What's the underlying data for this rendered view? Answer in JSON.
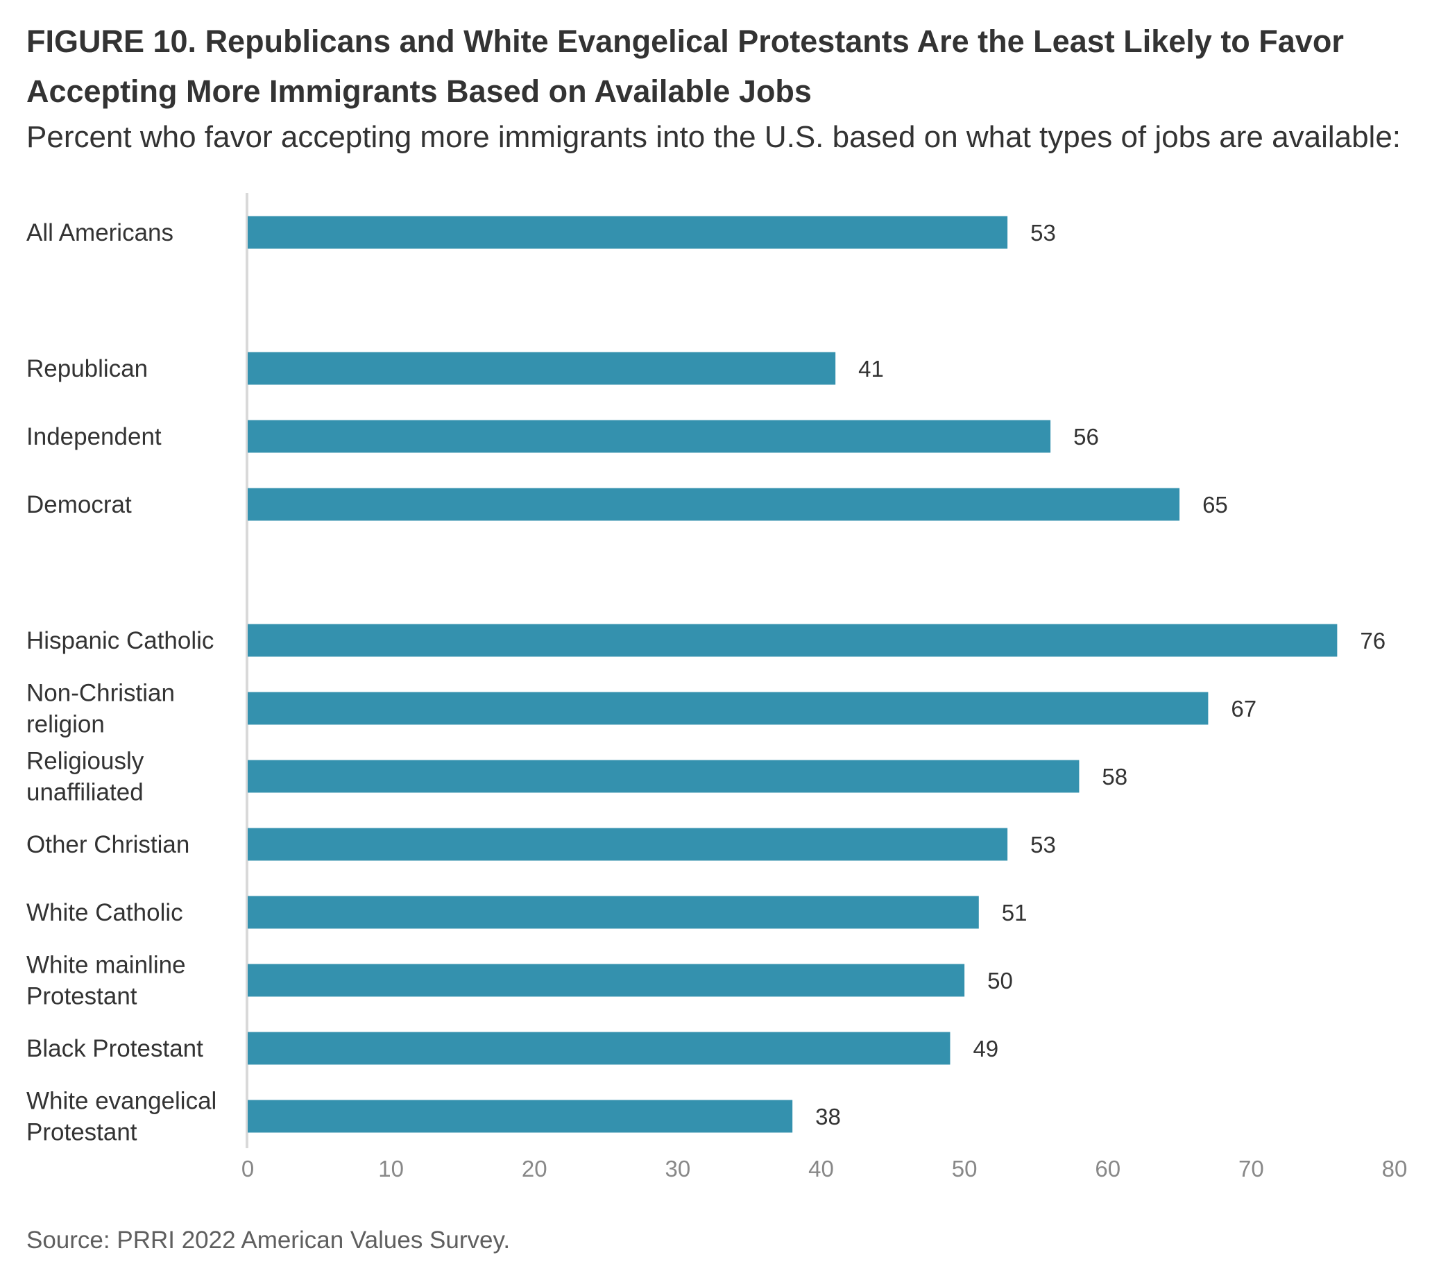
{
  "title": "FIGURE 10.  Republicans and White Evangelical Protestants Are the Least Likely to Favor Accepting More Immigrants Based on Available Jobs",
  "subtitle": "Percent who favor accepting more immigrants into the U.S. based on what types of jobs are available:",
  "source": "Source: PRRI 2022 American Values Survey.",
  "chart_data": {
    "type": "bar",
    "orientation": "horizontal",
    "categories": [
      [
        "All Americans"
      ],
      [
        "Republican"
      ],
      [
        "Independent"
      ],
      [
        "Democrat"
      ],
      [
        "Hispanic Catholic"
      ],
      [
        "Non-Christian",
        "religion"
      ],
      [
        "Religiously",
        "unaffiliated"
      ],
      [
        "Other Christian"
      ],
      [
        "White Catholic"
      ],
      [
        "White mainline",
        "Protestant"
      ],
      [
        "Black Protestant"
      ],
      [
        "White evangelical",
        "Protestant"
      ]
    ],
    "groups": [
      [
        0
      ],
      [
        1,
        2,
        3
      ],
      [
        4,
        5,
        6,
        7,
        8,
        9,
        10,
        11
      ]
    ],
    "values": [
      53,
      41,
      56,
      65,
      76,
      67,
      58,
      53,
      51,
      50,
      49,
      38
    ],
    "xlim": [
      0,
      80
    ],
    "xticks": [
      0,
      10,
      20,
      30,
      40,
      50,
      60,
      70,
      80
    ],
    "grid": false,
    "legend": "none",
    "bar_color": "#3491ae",
    "axis_color": "#d9d9d9"
  }
}
